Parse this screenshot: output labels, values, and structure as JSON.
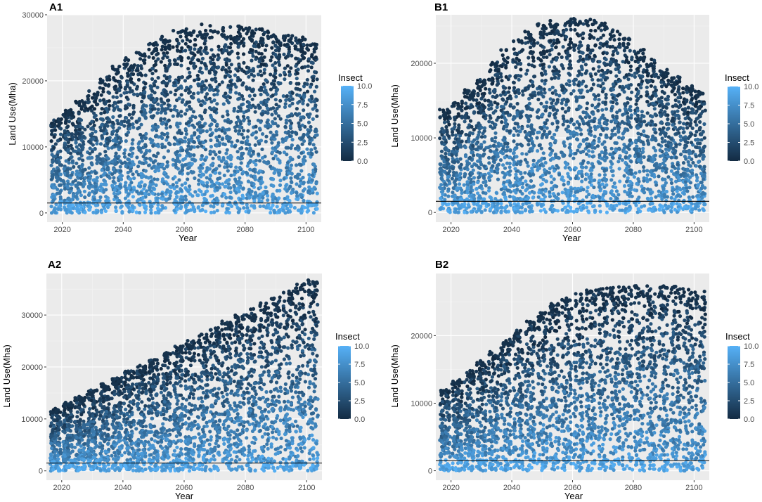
{
  "colors": {
    "panel_bg": "#ebebeb",
    "grid_major": "#ffffff",
    "grid_minor": "#f4f4f4",
    "low": "#132b43",
    "high": "#56b1f7",
    "hline": "#000000"
  },
  "chart_data": [
    {
      "id": "A1",
      "title": "A1",
      "type": "scatter",
      "xlabel": "Year",
      "ylabel": "Land Use(Mha)",
      "xlim": [
        2015,
        2105
      ],
      "ylim": [
        -1400,
        30000
      ],
      "xticks": [
        2020,
        2040,
        2060,
        2080,
        2100
      ],
      "xtick_labels": [
        "2020",
        "2040",
        "2060",
        "2080",
        "2100"
      ],
      "yticks": [
        0,
        10000,
        20000,
        30000
      ],
      "ytick_labels": [
        "0",
        "10000",
        "20000",
        "30000"
      ],
      "hline": 1500,
      "years": [
        2018,
        2022,
        2026,
        2030,
        2034,
        2038,
        2042,
        2046,
        2050,
        2054,
        2058,
        2062,
        2066,
        2070,
        2074,
        2078,
        2082,
        2086,
        2090,
        2094,
        2098,
        2102
      ],
      "max_land_use": [
        14200,
        15600,
        17000,
        18500,
        20800,
        22300,
        23500,
        24800,
        25900,
        26800,
        27600,
        28100,
        28600,
        28500,
        28400,
        28300,
        28100,
        27900,
        27400,
        27000,
        26600,
        26200
      ],
      "color_scale": {
        "title": "Insect",
        "min": 0.0,
        "max": 10.0,
        "breaks": [
          10.0,
          7.5,
          5.0,
          2.5,
          0.0
        ],
        "break_labels": [
          "10.0",
          "7.5",
          "5.0",
          "2.5",
          "0.0"
        ]
      }
    },
    {
      "id": "B1",
      "title": "B1",
      "type": "scatter",
      "xlabel": "Year",
      "ylabel": "Land Use(Mha)",
      "xlim": [
        2015,
        2105
      ],
      "ylim": [
        -1300,
        26500
      ],
      "xticks": [
        2020,
        2040,
        2060,
        2080,
        2100
      ],
      "xtick_labels": [
        "2020",
        "2040",
        "2060",
        "2080",
        "2100"
      ],
      "yticks": [
        0,
        10000,
        20000
      ],
      "ytick_labels": [
        "0",
        "10000",
        "20000"
      ],
      "hline": 1500,
      "years": [
        2018,
        2022,
        2026,
        2030,
        2034,
        2038,
        2042,
        2046,
        2050,
        2054,
        2058,
        2062,
        2066,
        2070,
        2074,
        2078,
        2082,
        2086,
        2090,
        2094,
        2098,
        2102
      ],
      "max_land_use": [
        13800,
        15000,
        16500,
        18000,
        20200,
        21800,
        23200,
        24400,
        25300,
        25800,
        26000,
        26200,
        25900,
        25400,
        24600,
        23400,
        22000,
        20600,
        19200,
        18200,
        17000,
        16300
      ],
      "color_scale": {
        "title": "Insect",
        "min": 0.0,
        "max": 10.0,
        "breaks": [
          10.0,
          7.5,
          5.0,
          2.5,
          0.0
        ],
        "break_labels": [
          "10.0",
          "7.5",
          "5.0",
          "2.5",
          "0.0"
        ]
      }
    },
    {
      "id": "A2",
      "title": "A2",
      "type": "scatter",
      "xlabel": "Year",
      "ylabel": "Land Use(Mha)",
      "xlim": [
        2015,
        2105
      ],
      "ylim": [
        -1800,
        38000
      ],
      "xticks": [
        2020,
        2040,
        2060,
        2080,
        2100
      ],
      "xtick_labels": [
        "2020",
        "2040",
        "2060",
        "2080",
        "2100"
      ],
      "yticks": [
        0,
        10000,
        20000,
        30000
      ],
      "ytick_labels": [
        "0",
        "10000",
        "20000",
        "30000"
      ],
      "hline": 1500,
      "years": [
        2018,
        2022,
        2026,
        2030,
        2034,
        2038,
        2042,
        2046,
        2050,
        2054,
        2058,
        2062,
        2066,
        2070,
        2074,
        2078,
        2082,
        2086,
        2090,
        2094,
        2098,
        2102
      ],
      "max_land_use": [
        12000,
        13200,
        14400,
        15600,
        16800,
        18000,
        19200,
        20400,
        21600,
        22800,
        24000,
        25200,
        26400,
        27600,
        28800,
        30000,
        31200,
        32400,
        33600,
        34800,
        36000,
        36800
      ],
      "color_scale": {
        "title": "Insect",
        "min": 0.0,
        "max": 10.0,
        "breaks": [
          10.0,
          7.5,
          5.0,
          2.5,
          0.0
        ],
        "break_labels": [
          "10.0",
          "7.5",
          "5.0",
          "2.5",
          "0.0"
        ]
      }
    },
    {
      "id": "B2",
      "title": "B2",
      "type": "scatter",
      "xlabel": "Year",
      "ylabel": "Land Use(Mha)",
      "xlim": [
        2015,
        2105
      ],
      "ylim": [
        -1400,
        29200
      ],
      "xticks": [
        2020,
        2040,
        2060,
        2080,
        2100
      ],
      "xtick_labels": [
        "2020",
        "2040",
        "2060",
        "2080",
        "2100"
      ],
      "yticks": [
        0,
        10000,
        20000
      ],
      "ytick_labels": [
        "0",
        "10000",
        "20000"
      ],
      "hline": 1500,
      "years": [
        2018,
        2022,
        2026,
        2030,
        2034,
        2038,
        2042,
        2046,
        2050,
        2054,
        2058,
        2062,
        2066,
        2070,
        2074,
        2078,
        2082,
        2086,
        2090,
        2094,
        2098,
        2102
      ],
      "max_land_use": [
        12000,
        13500,
        14800,
        16300,
        17800,
        19500,
        20800,
        22300,
        23700,
        24800,
        25600,
        26300,
        26800,
        27100,
        27300,
        27400,
        27500,
        27500,
        27400,
        27300,
        27000,
        26700
      ],
      "color_scale": {
        "title": "Insect",
        "min": 0.0,
        "max": 10.0,
        "breaks": [
          10.0,
          7.5,
          5.0,
          2.5,
          0.0
        ],
        "break_labels": [
          "10.0",
          "7.5",
          "5.0",
          "2.5",
          "0.0"
        ]
      }
    }
  ]
}
